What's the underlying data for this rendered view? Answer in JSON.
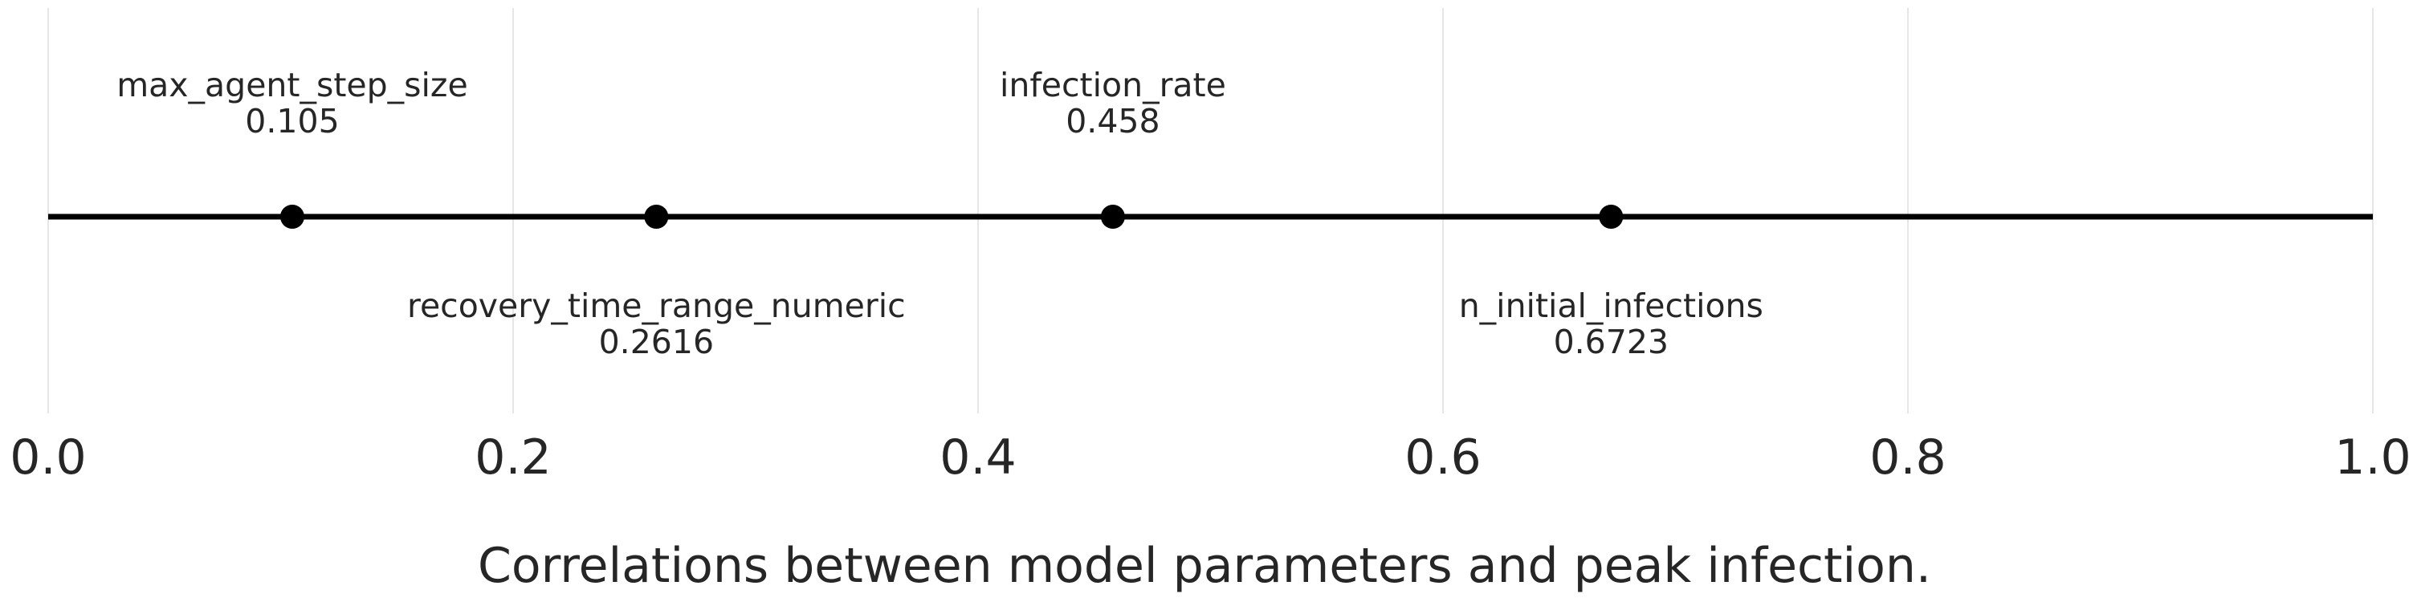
{
  "chart_data": {
    "type": "scatter",
    "title": "Correlations between model parameters and peak infection.",
    "xlim": [
      0.0,
      1.0
    ],
    "grid": true,
    "x_ticks": [
      "0.0",
      "0.2",
      "0.4",
      "0.6",
      "0.8",
      "1.0"
    ],
    "points": [
      {
        "name": "max_agent_step_size",
        "value": 0.105,
        "value_label": "0.105",
        "label_position": "above"
      },
      {
        "name": "recovery_time_range_numeric",
        "value": 0.2616,
        "value_label": "0.2616",
        "label_position": "below"
      },
      {
        "name": "infection_rate",
        "value": 0.458,
        "value_label": "0.458",
        "label_position": "above"
      },
      {
        "name": "n_initial_infections",
        "value": 0.6723,
        "value_label": "0.6723",
        "label_position": "below"
      }
    ],
    "colors": {
      "line": "#000000",
      "marker": "#000000",
      "grid": "#e6e6e6",
      "text": "#262626"
    }
  }
}
